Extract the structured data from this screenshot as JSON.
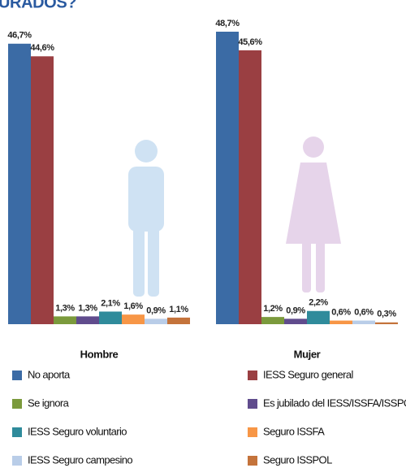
{
  "chart_data": {
    "type": "bar",
    "title": "URADOS?",
    "categories": [
      "Hombre",
      "Mujer"
    ],
    "series": [
      {
        "name": "No aporta",
        "color": "#3b6ba5",
        "values": [
          46.7,
          48.7
        ],
        "value_labels": [
          "46,7%",
          "48,7%"
        ]
      },
      {
        "name": "IESS Seguro general",
        "color": "#9a3f42",
        "values": [
          44.6,
          45.6
        ],
        "value_labels": [
          "44,6%",
          "45,6%"
        ]
      },
      {
        "name": "Se ignora",
        "color": "#7b9a3c",
        "values": [
          1.3,
          1.2
        ],
        "value_labels": [
          "1,3%",
          "1,2%"
        ]
      },
      {
        "name": "Es jubilado del IESS/ISSFA/ISSPOL",
        "color": "#604c8d",
        "values": [
          1.3,
          0.9
        ],
        "value_labels": [
          "1,3%",
          "0,9%"
        ]
      },
      {
        "name": "IESS Seguro voluntario",
        "color": "#2f8b9b",
        "values": [
          2.1,
          2.2
        ],
        "value_labels": [
          "2,1%",
          "2,2%"
        ]
      },
      {
        "name": "Seguro ISSFA",
        "color": "#f79646",
        "values": [
          1.6,
          0.6
        ],
        "value_labels": [
          "1,6%",
          "0,6%"
        ]
      },
      {
        "name": "IESS Seguro campesino",
        "color": "#b9cde8",
        "values": [
          0.9,
          0.6
        ],
        "value_labels": [
          "0,9%",
          "0,6%"
        ]
      },
      {
        "name": "Seguro ISSPOL",
        "color": "#c4733b",
        "values": [
          1.1,
          0.3
        ],
        "value_labels": [
          "1,1%",
          "0,3%"
        ]
      }
    ]
  }
}
